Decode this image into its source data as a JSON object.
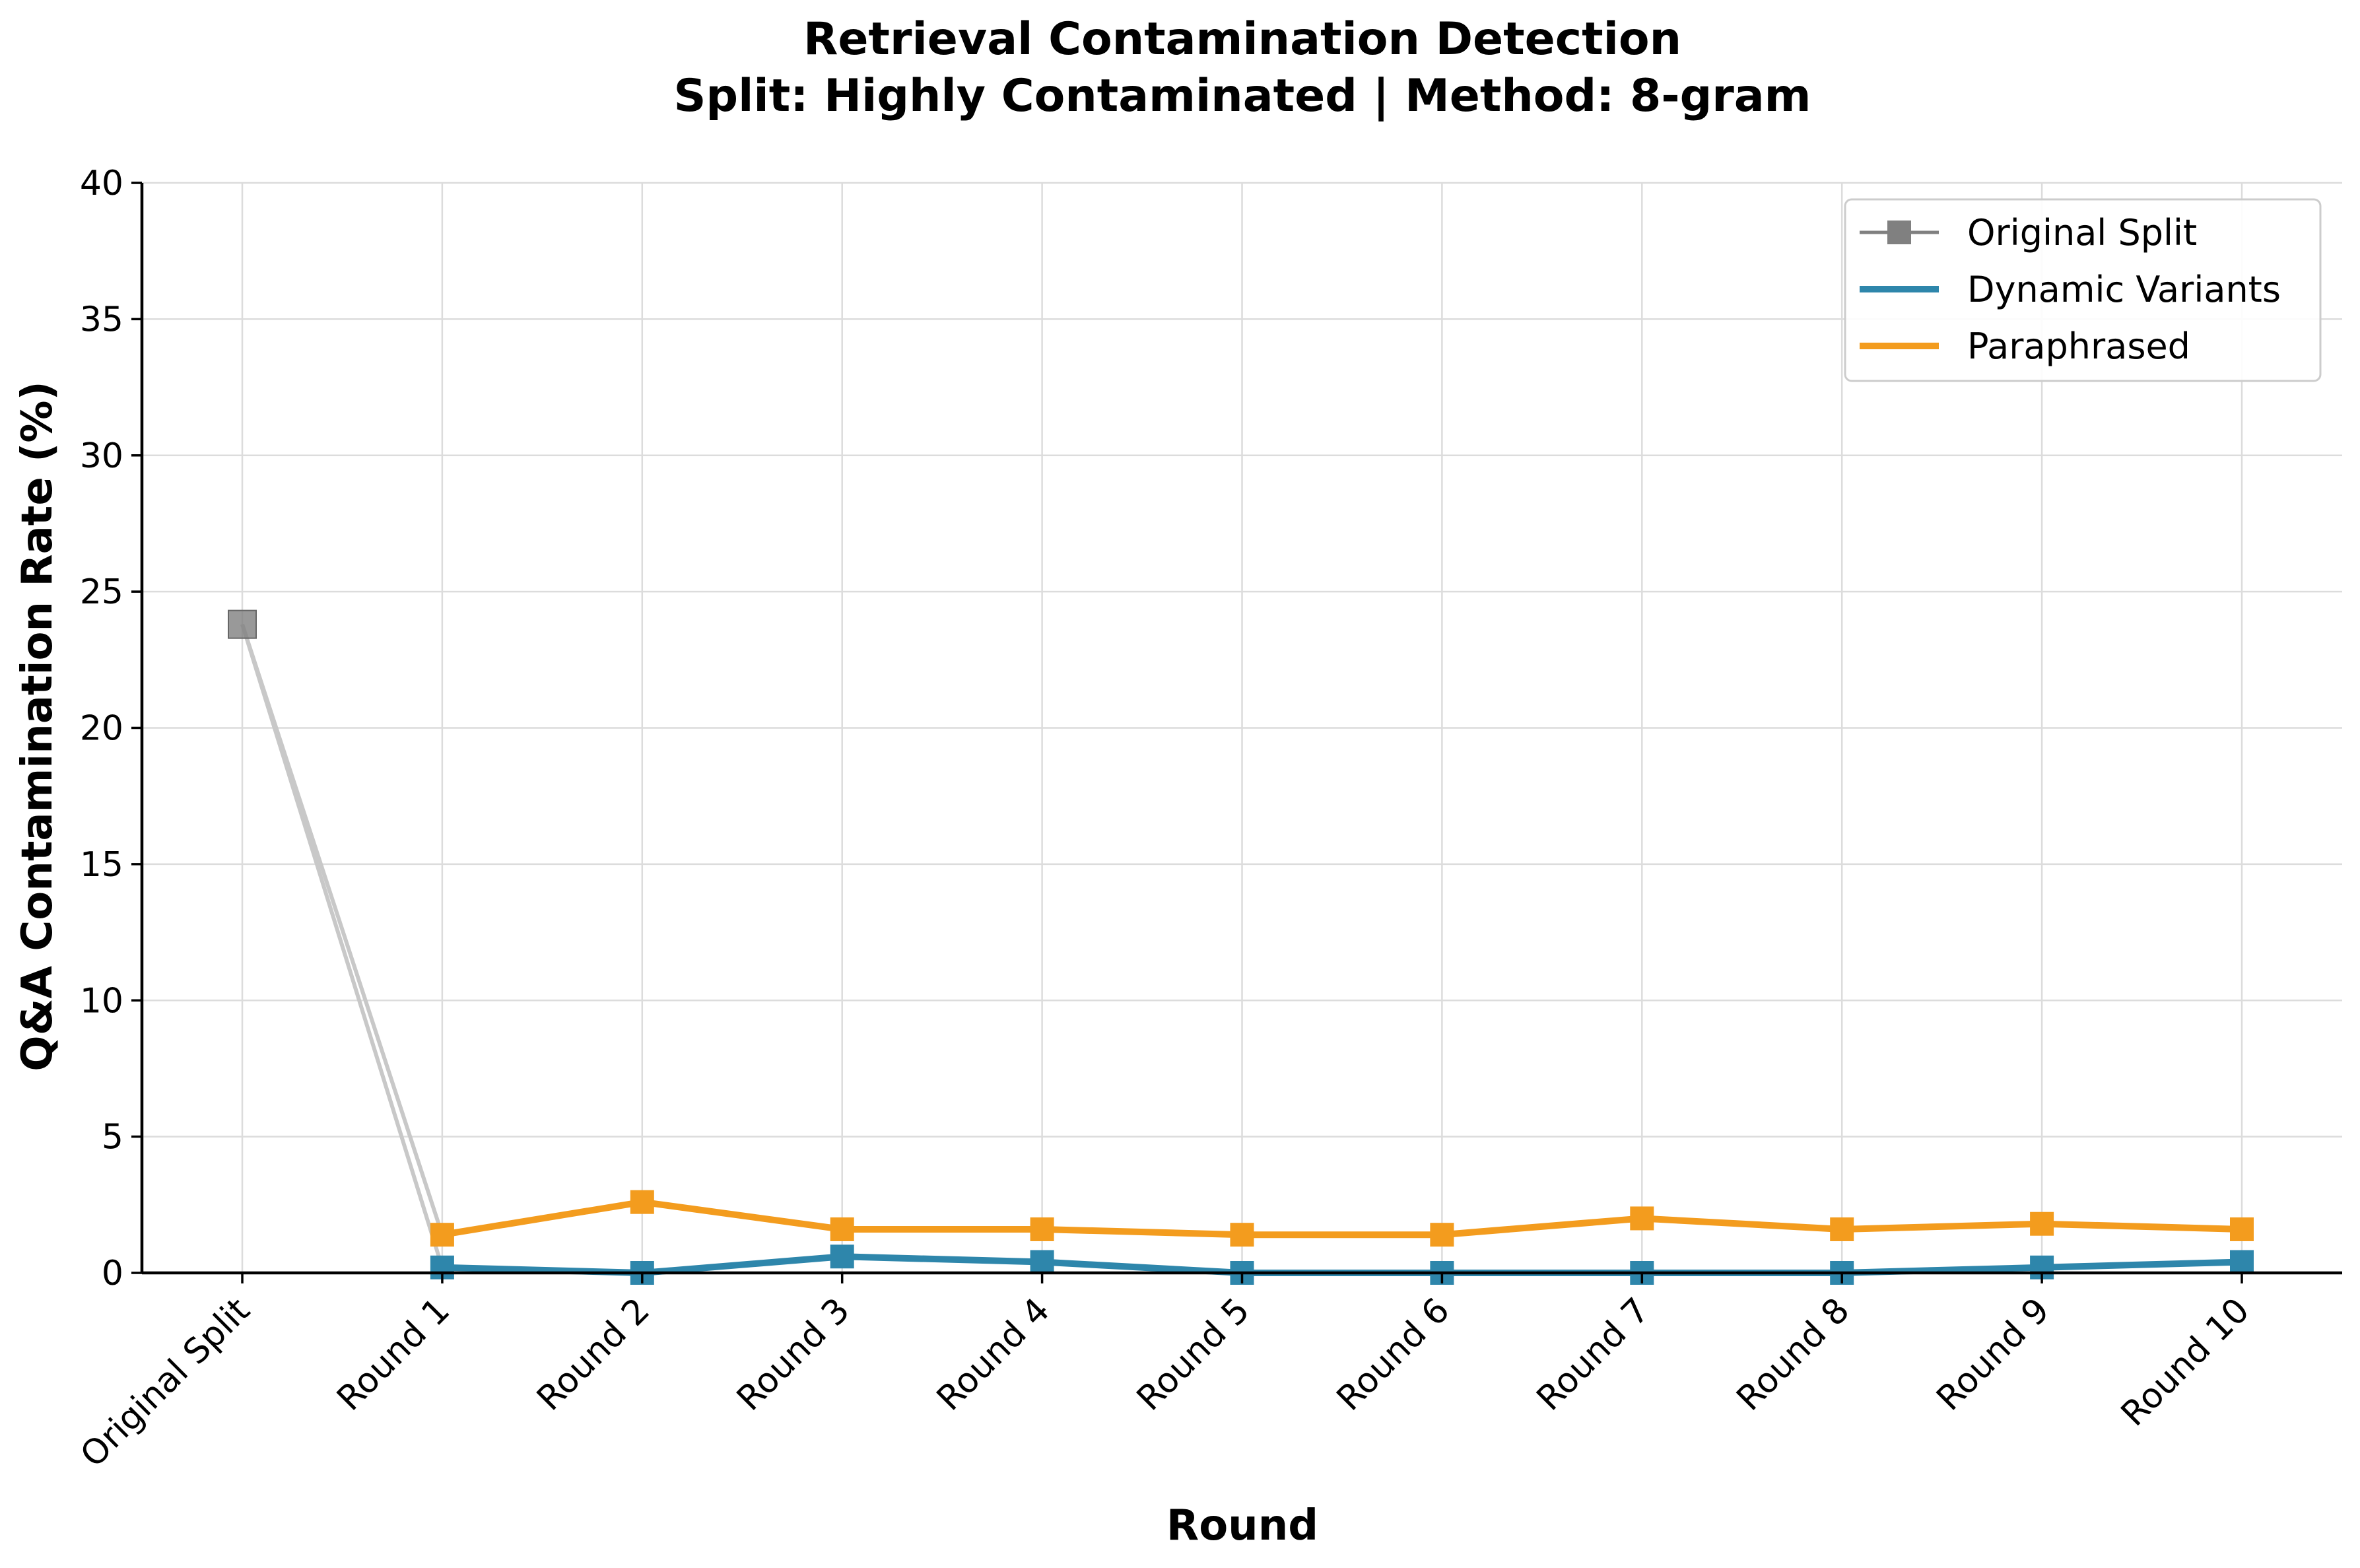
{
  "chart_data": {
    "type": "line",
    "title": "Retrieval Contamination Detection",
    "subtitle": "Split: Highly Contaminated | Method: 8-gram",
    "xlabel": "Round",
    "ylabel": "Q&A Contamination Rate (%)",
    "categories": [
      "Original Split",
      "Round 1",
      "Round 2",
      "Round 3",
      "Round 4",
      "Round 5",
      "Round 6",
      "Round 7",
      "Round 8",
      "Round 9",
      "Round 10"
    ],
    "ylim": [
      0,
      40
    ],
    "yticks": [
      0,
      5,
      10,
      15,
      20,
      25,
      30,
      35,
      40
    ],
    "grid": true,
    "legend_position": "top-right",
    "original_point": {
      "category": "Original Split",
      "value": 23.8
    },
    "series": [
      {
        "name": "Original Split",
        "color": "#808080",
        "marker": "square",
        "values": [
          23.8,
          null,
          null,
          null,
          null,
          null,
          null,
          null,
          null,
          null,
          null
        ]
      },
      {
        "name": "Dynamic Variants",
        "color": "#2e86ab",
        "marker": "square",
        "values": [
          null,
          0.2,
          0.0,
          0.6,
          0.4,
          0.0,
          0.0,
          0.0,
          0.0,
          0.2,
          0.4
        ]
      },
      {
        "name": "Paraphrased",
        "color": "#f39c1e",
        "marker": "square",
        "values": [
          null,
          1.4,
          2.6,
          1.6,
          1.6,
          1.4,
          1.4,
          2.0,
          1.6,
          1.8,
          1.6
        ]
      }
    ],
    "connector_color": "#c8c8c8"
  }
}
